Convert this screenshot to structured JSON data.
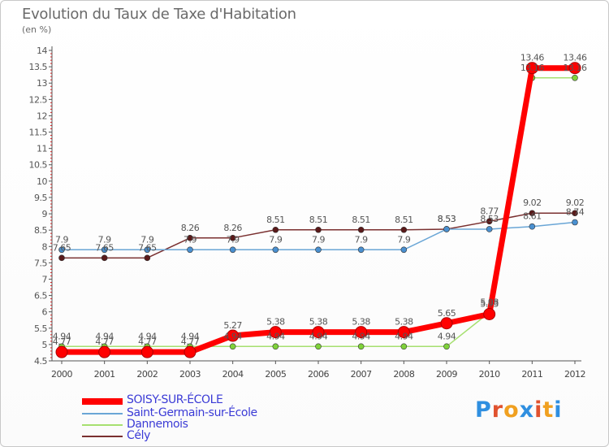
{
  "page": {
    "title": "Evolution du Taux de Taxe d'Habitation",
    "unit_label": "(en %)",
    "logo_text": "Proxiti"
  },
  "chart_data": {
    "type": "line",
    "title": "Evolution du Taux de Taxe d'Habitation",
    "ylabel": "(en %)",
    "xlabel": "",
    "ylim": [
      4.5,
      14
    ],
    "grid": false,
    "legend_placement": "bottom-left",
    "x": [
      "2000",
      "2001",
      "2002",
      "2003",
      "2004",
      "2005",
      "2006",
      "2007",
      "2008",
      "2009",
      "2010",
      "2011",
      "2012"
    ],
    "y_ticks": [
      "4.5",
      "5",
      "5.5",
      "6",
      "6.5",
      "7",
      "7.5",
      "8",
      "8.5",
      "9",
      "9.5",
      "10",
      "10.5",
      "11",
      "11.5",
      "12",
      "12.5",
      "13",
      "13.5",
      "14"
    ],
    "series": [
      {
        "name": "SOISY-SUR-ÉCOLE",
        "color": "#ff0000",
        "values": [
          4.77,
          4.77,
          4.77,
          4.77,
          5.27,
          5.38,
          5.38,
          5.38,
          5.38,
          5.65,
          5.93,
          13.46,
          13.46
        ],
        "labels": [
          "4.77",
          "4.77",
          "4.77",
          "4.77",
          "5.27",
          "5.38",
          "5.38",
          "5.38",
          "5.38",
          "5.65",
          "5.93",
          "13.46",
          "13.46"
        ]
      },
      {
        "name": "Saint-Germain-sur-École",
        "color": "#6aa6d6",
        "values": [
          7.9,
          7.9,
          7.9,
          7.9,
          7.9,
          7.9,
          7.9,
          7.9,
          7.9,
          8.53,
          8.53,
          8.61,
          8.74
        ],
        "labels": [
          "7.9",
          "7.9",
          "7.9",
          "7.9",
          "7.9",
          "7.9",
          "7.9",
          "7.9",
          "7.9",
          "8.53",
          "8.53",
          "8.61",
          "8.74"
        ]
      },
      {
        "name": "Dannemois",
        "color": "#a6e070",
        "values": [
          4.94,
          4.94,
          4.94,
          4.94,
          4.94,
          4.94,
          4.94,
          4.94,
          4.94,
          4.94,
          5.98,
          13.16,
          13.16
        ],
        "labels": [
          "4.94",
          "4.94",
          "4.94",
          "4.94",
          "4.94",
          "4.94",
          "4.94",
          "4.94",
          "4.94",
          "4.94",
          "5.98",
          "13.16",
          "13.16"
        ]
      },
      {
        "name": "Cély",
        "color": "#7a3030",
        "values": [
          7.65,
          7.65,
          7.65,
          8.26,
          8.26,
          8.51,
          8.51,
          8.51,
          8.51,
          8.53,
          8.77,
          9.02,
          9.02
        ],
        "labels": [
          "7.65",
          "7.65",
          "7.65",
          "8.26",
          "8.26",
          "8.51",
          "8.51",
          "8.51",
          "8.51",
          "8.53",
          "8.77",
          "9.02",
          "9.02"
        ]
      }
    ]
  }
}
